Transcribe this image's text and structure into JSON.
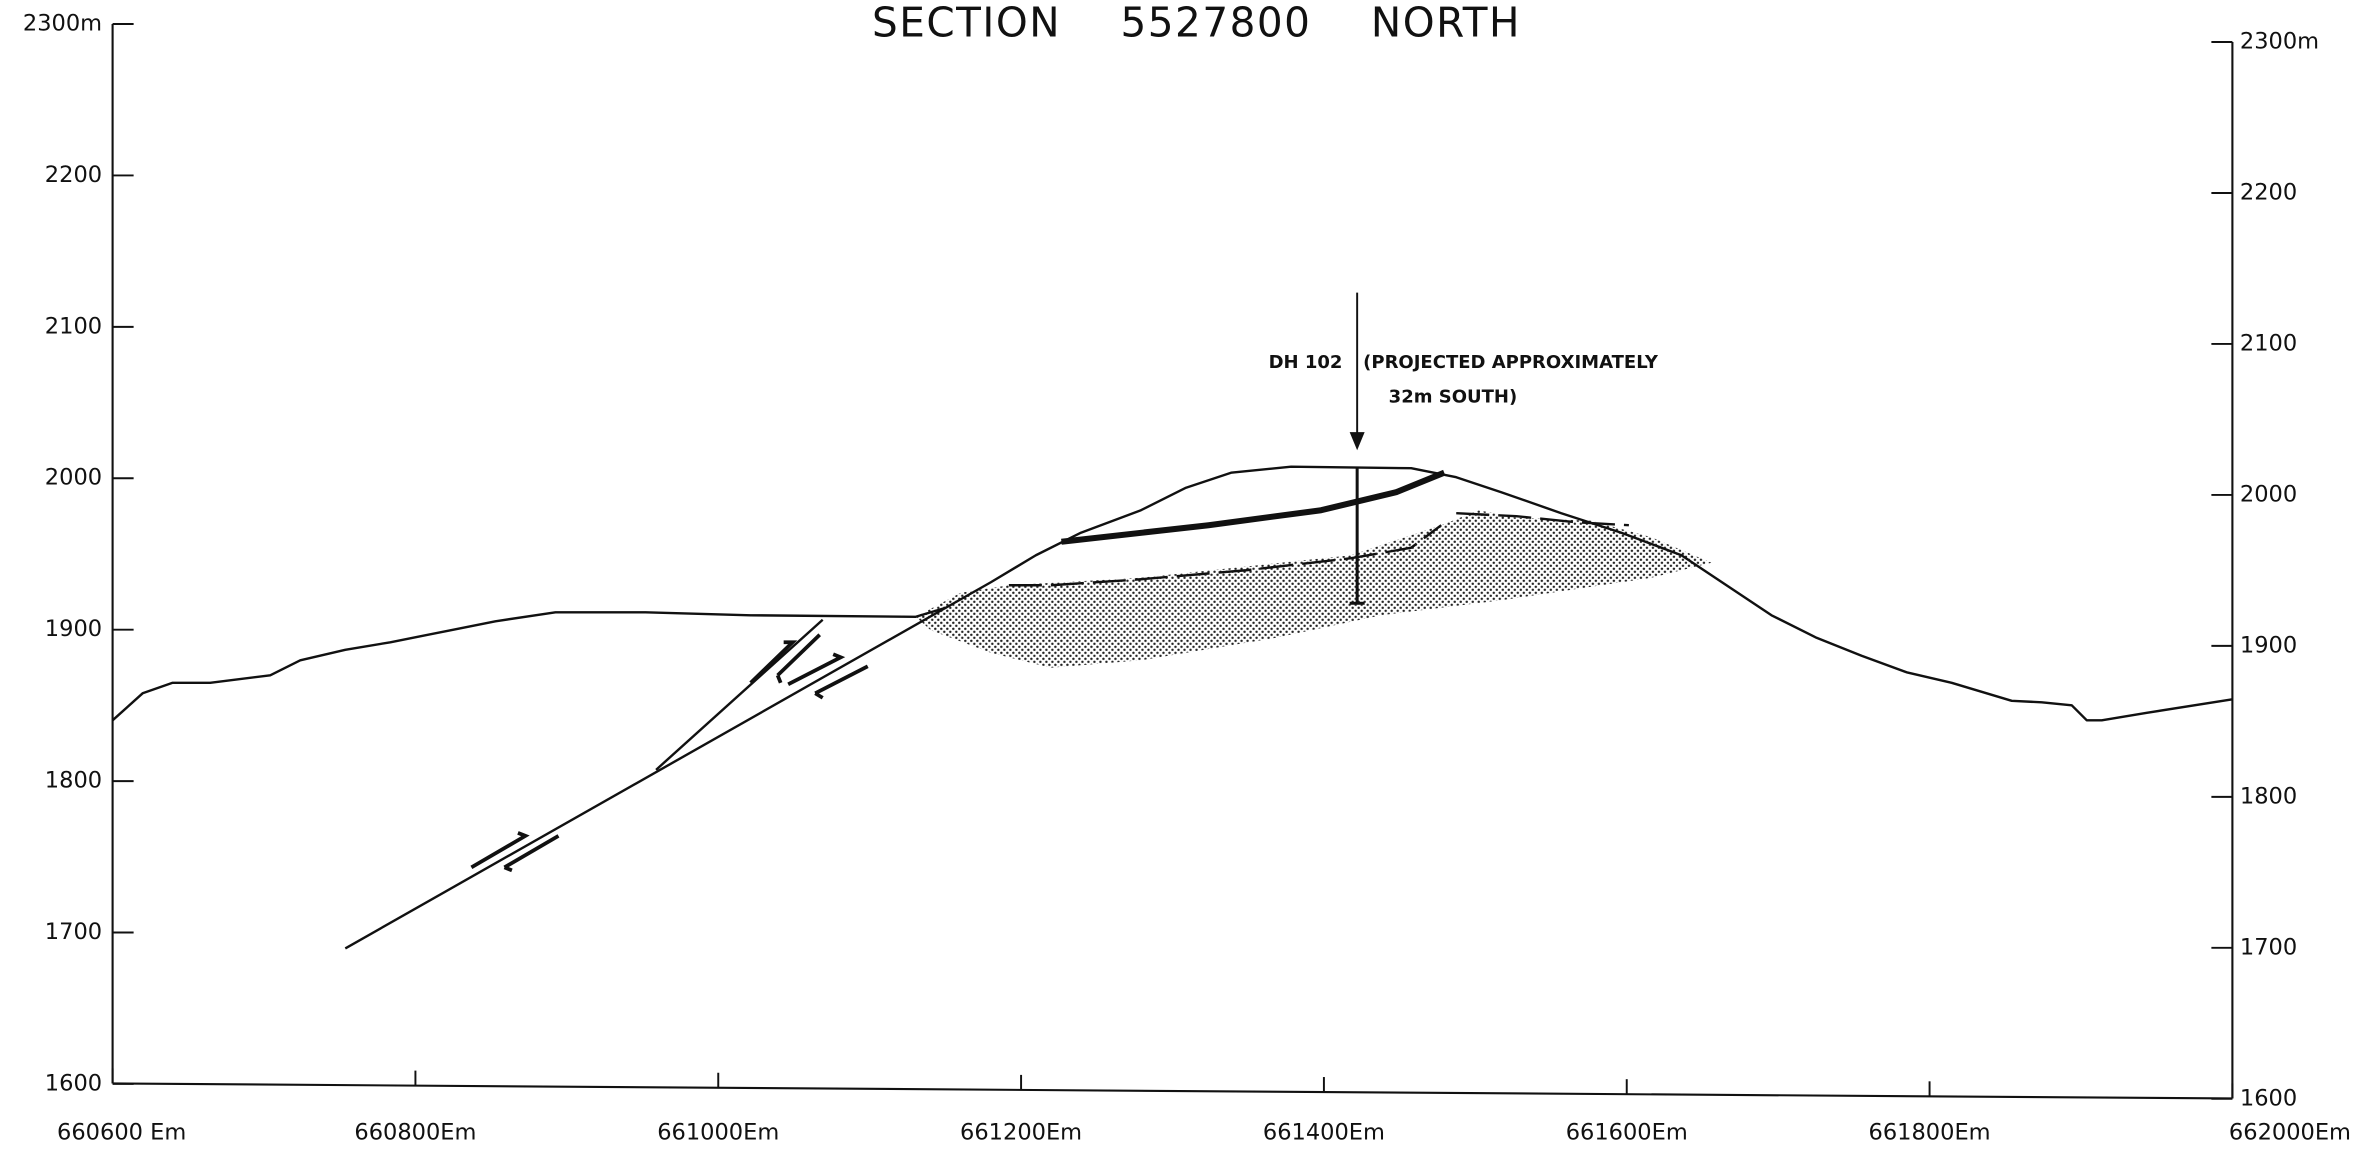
{
  "title": "SECTION 5527800 NORTH",
  "left_axis": {
    "labels": [
      "2300m",
      "2200",
      "2100",
      "2000",
      "1900",
      "1800",
      "1700",
      "1600"
    ]
  },
  "right_axis": {
    "labels": [
      "2300m",
      "2200",
      "2100",
      "2000",
      "1900",
      "1800",
      "1700",
      "1600"
    ]
  },
  "bottom_axis": {
    "labels": [
      "660600 Em",
      "660800Em",
      "661000Em",
      "661200Em",
      "661400Em",
      "661600Em",
      "661800Em",
      "662000Em"
    ]
  },
  "annotation": {
    "hole": "DH 102",
    "note_lines": [
      "(PROJECTED APPROXIMATELY",
      "32m SOUTH)"
    ]
  }
}
